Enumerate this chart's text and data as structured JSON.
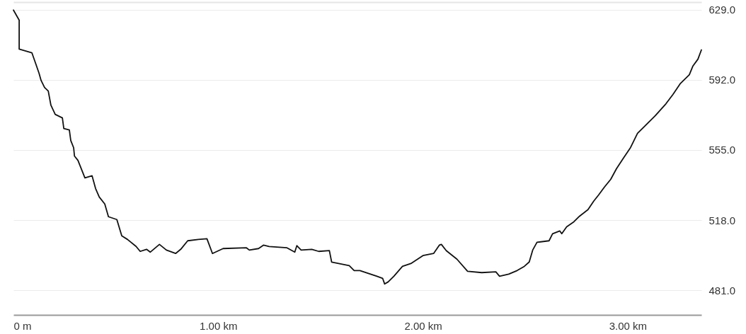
{
  "chart_data": {
    "type": "line",
    "x": [
      0,
      0.028,
      0.028,
      0.09,
      0.107,
      0.125,
      0.135,
      0.152,
      0.17,
      0.183,
      0.204,
      0.239,
      0.246,
      0.273,
      0.28,
      0.294,
      0.298,
      0.315,
      0.349,
      0.384,
      0.401,
      0.419,
      0.446,
      0.464,
      0.505,
      0.529,
      0.557,
      0.599,
      0.619,
      0.65,
      0.668,
      0.713,
      0.747,
      0.792,
      0.817,
      0.851,
      0.903,
      0.945,
      0.972,
      1.024,
      1.138,
      1.152,
      1.197,
      1.221,
      1.249,
      1.298,
      1.336,
      1.374,
      1.384,
      1.405,
      1.457,
      1.491,
      1.543,
      1.554,
      1.64,
      1.664,
      1.692,
      1.775,
      1.803,
      1.813,
      1.83,
      1.858,
      1.9,
      1.941,
      2.0,
      2.052,
      2.08,
      2.09,
      2.114,
      2.166,
      2.218,
      2.287,
      2.356,
      2.374,
      2.419,
      2.46,
      2.495,
      2.519,
      2.536,
      2.557,
      2.616,
      2.633,
      2.668,
      2.678,
      2.702,
      2.737,
      2.765,
      2.806,
      2.834,
      2.858,
      2.886,
      2.917,
      2.945,
      2.979,
      3.014,
      3.048,
      3.083,
      3.135,
      3.187,
      3.221,
      3.256,
      3.301,
      3.318,
      3.343,
      3.36
    ],
    "series": [
      {
        "color": "#111111",
        "values": [
          628.8,
          623.5,
          608.2,
          606.3,
          601.1,
          595.5,
          591.7,
          588.0,
          586.1,
          578.6,
          573.8,
          571.9,
          566.3,
          565.6,
          560.0,
          556.2,
          551.8,
          549.5,
          540.3,
          541.4,
          534.7,
          530.2,
          526.5,
          519.8,
          518.3,
          509.7,
          507.8,
          504.1,
          501.5,
          502.6,
          501.1,
          505.2,
          502.2,
          500.4,
          502.6,
          507.1,
          507.8,
          508.2,
          500.4,
          503.0,
          503.4,
          502.2,
          503.0,
          504.8,
          504.1,
          503.7,
          503.4,
          501.1,
          504.5,
          502.2,
          502.6,
          501.5,
          501.9,
          495.9,
          494.0,
          491.4,
          491.4,
          488.4,
          487.3,
          484.3,
          485.4,
          488.4,
          493.6,
          495.1,
          499.3,
          500.4,
          504.8,
          505.2,
          501.9,
          497.4,
          491.0,
          490.3,
          490.7,
          488.4,
          489.5,
          491.4,
          493.6,
          495.9,
          502.2,
          506.3,
          507.1,
          510.8,
          512.3,
          510.8,
          514.5,
          517.1,
          520.1,
          523.5,
          528.0,
          531.3,
          535.4,
          539.5,
          545.1,
          550.7,
          556.3,
          563.8,
          567.5,
          573.1,
          579.4,
          584.3,
          589.9,
          594.7,
          599.2,
          602.9,
          607.8
        ]
      }
    ],
    "xlim": [
      0,
      3.36
    ],
    "xticks": [
      {
        "value": 0,
        "label": "0 m"
      },
      {
        "value": 1,
        "label": "1.00 km"
      },
      {
        "value": 2,
        "label": "2.00 km"
      },
      {
        "value": 3,
        "label": "3.00 km"
      }
    ],
    "ylim": [
      468,
      633
    ],
    "yticks": [
      {
        "value": 481,
        "label": "481.0"
      },
      {
        "value": 518,
        "label": "518.0"
      },
      {
        "value": 555,
        "label": "555.0"
      },
      {
        "value": 592,
        "label": "592.0"
      },
      {
        "value": 629,
        "label": "629.0"
      }
    ],
    "grid": "y"
  }
}
